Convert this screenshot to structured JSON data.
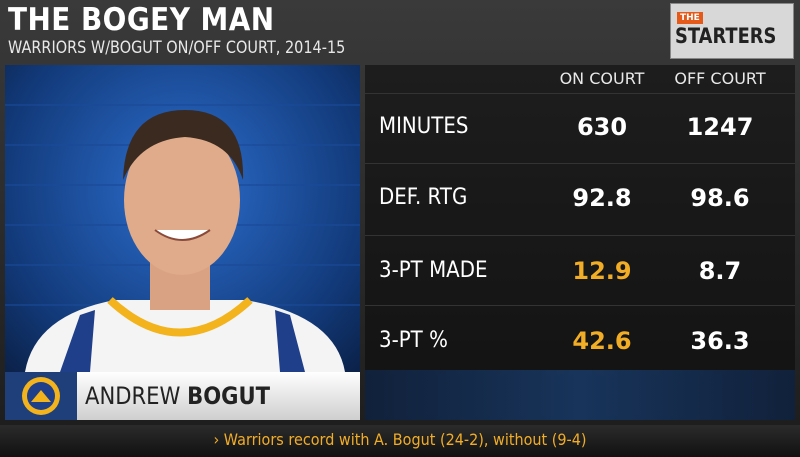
{
  "header": {
    "title": "THE BOGEY MAN",
    "subtitle": "WARRIORS W/BOGUT ON/OFF COURT, 2014-15",
    "logo_small": "THE",
    "logo": "STARTERS"
  },
  "player": {
    "first_name": "ANDREW",
    "last_name": "BOGUT"
  },
  "table": {
    "columns": [
      "ON COURT",
      "OFF COURT"
    ],
    "rows": [
      {
        "label": "MINUTES",
        "values": [
          630,
          1247
        ]
      },
      {
        "label": "DEF.  RTG",
        "values": [
          92.8,
          98.6
        ]
      },
      {
        "label": "3-PT MADE",
        "values": [
          12.9,
          8.7
        ]
      },
      {
        "label": "3-PT %",
        "values": [
          42.6,
          36.3
        ]
      }
    ]
  },
  "footer": "› Warriors record with A. Bogut (24-2), without (9-4)"
}
